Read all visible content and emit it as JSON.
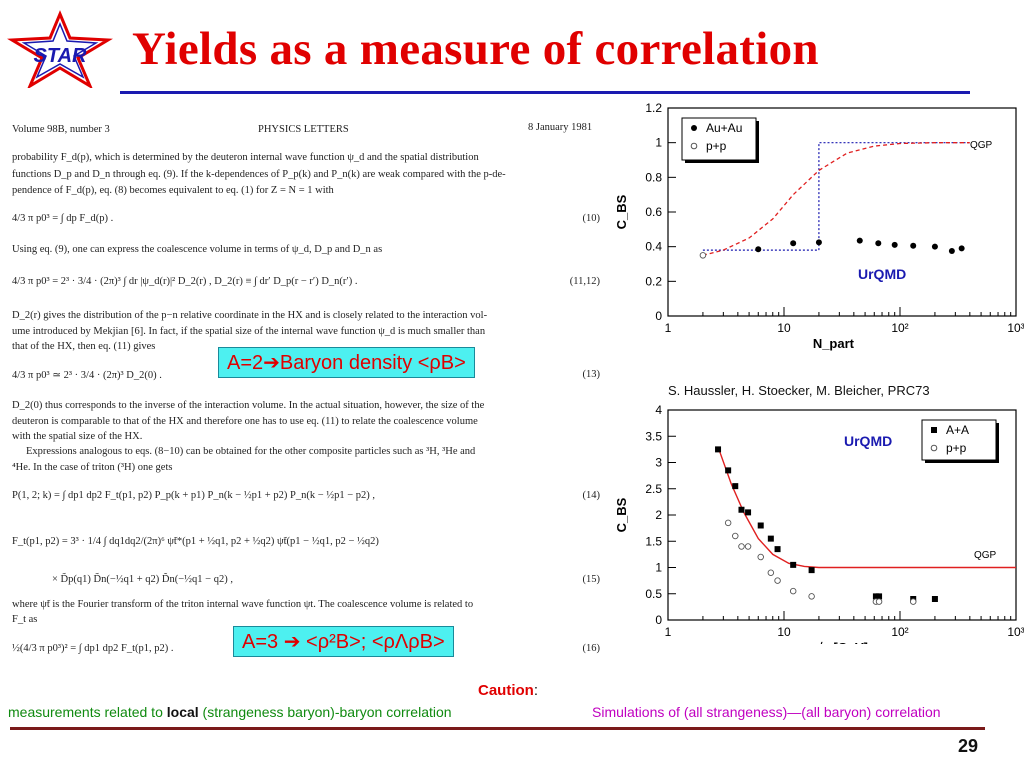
{
  "slide": {
    "title": "Yields as a measure of correlation",
    "logo_text": "STAR",
    "page_number": "29",
    "colors": {
      "title": "#e00000",
      "rule": "#1a1ab0",
      "callout_bg": "#4df0f0",
      "caution_red": "#e00000",
      "green": "#108a10",
      "magenta": "#c000c0"
    }
  },
  "paper": {
    "header_left": "Volume 98B, number 3",
    "header_center": "PHYSICS LETTERS",
    "header_right": "8 January 1981",
    "lines": [
      "probability F_d(p), which is determined by the deuteron internal wave function ψ_d and the spatial distribution",
      "functions D_p and D_n through eq. (9). If the k-dependences of P_p(k) and P_n(k) are weak compared with the p-de-",
      "pendence of F_d(p), eq. (8) becomes equivalent to eq. (1) for Z = N = 1 with",
      "4/3 π p0³ = ∫ dp F_d(p) .",
      "Using eq. (9), one can express the coalescence volume in terms of ψ_d, D_p and D_n as",
      "4/3 π p0³ = 2³ · 3/4 · (2π)³ ∫ dr |ψ_d(r)|² D_2(r) ,    D_2(r) ≡ ∫ dr′ D_p(r − r′) D_n(r′) .",
      "D_2(r) gives the distribution of the p−n relative coordinate in the HX and is closely related to the interaction vol-",
      "ume introduced by Mekjian [6]. In fact, if the spatial size of the internal wave function ψ_d is much smaller than",
      "that of the HX, then eq. (11) gives",
      "4/3 π p0³ ≃ 2³ · 3/4 · (2π)³ D_2(0) .",
      "D_2(0) thus corresponds to the inverse of the interaction volume. In the actual situation, however, the size of the",
      "deuteron is comparable to that of the HX and therefore one has to use eq. (11) to relate the coalescence volume",
      "with the spatial size of the HX.",
      "Expressions analogous to eqs. (8−10) can be obtained for the other composite particles such as ³H, ³He and",
      "⁴He. In the case of triton (³H) one gets",
      "P(1, 2; k) = ∫ dp1 dp2 F_t(p1, p2) P_p(k + p1) P_n(k − ½p1 + p2) P_n(k − ½p1 − p2) ,",
      "F_t(p1, p2) = 3³ · 1/4 ∫ dq1dq2/(2π)⁶ ψ̃t*(p1 + ½q1, p2 + ½q2) ψ̃t(p1 − ½q1, p2 − ½q2)",
      "× D̃p(q1) D̃n(−½q1 + q2) D̃n(−½q1 − q2) ,",
      "where ψ̃t is the Fourier transform of the triton internal wave function ψt. The coalescence volume is related to",
      "F_t as",
      "½(4/3 π p0³)² = ∫ dp1 dp2 F_t(p1, p2) ."
    ],
    "eq_numbers": [
      "(10)",
      "(11,12)",
      "(13)",
      "(14)",
      "(15)",
      "(16)"
    ]
  },
  "callouts": {
    "a2": "A=2➔Baryon density <ρB>",
    "a3": "A=3 ➔ <ρ²B>; <ρΛρB>"
  },
  "captions": {
    "reference": "S. Haussler, H. Stoecker, M. Bleicher, PRC73",
    "caution_label": "Caution",
    "caution_colon": ":",
    "left_pre": "measurements related to ",
    "left_bold": "local",
    "left_post": " (strangeness baryon)-baryon correlation",
    "right": "Simulations of (all strangeness)—(all baryon) correlation"
  },
  "chart_data": [
    {
      "type": "scatter",
      "xlabel": "N_part",
      "ylabel": "C_BS",
      "xscale": "log",
      "xlim": [
        1,
        1000
      ],
      "ylim": [
        0,
        1.2
      ],
      "xticks": [
        "1",
        "10",
        "10²",
        "10³"
      ],
      "yticks": [
        "0",
        "0.2",
        "0.4",
        "0.6",
        "0.8",
        "1",
        "1.2"
      ],
      "annotations": [
        "QGP",
        "UrQMD"
      ],
      "legend": {
        "placement": "top-left",
        "entries": [
          "Au+Au",
          "p+p"
        ]
      },
      "series": [
        {
          "name": "Au+Au",
          "marker": "filled-circle",
          "x": [
            6,
            12,
            20,
            45,
            65,
            90,
            130,
            200,
            280,
            340
          ],
          "y": [
            0.385,
            0.42,
            0.425,
            0.435,
            0.42,
            0.41,
            0.405,
            0.4,
            0.375,
            0.39
          ]
        },
        {
          "name": "p+p",
          "marker": "open-circle",
          "x": [
            2
          ],
          "y": [
            0.35
          ]
        }
      ],
      "lines": [
        {
          "style": "blue-dotted-step",
          "x": [
            2,
            20,
            20,
            400
          ],
          "y": [
            0.38,
            0.38,
            1.0,
            1.0
          ]
        },
        {
          "style": "red-dashed-sigmoid",
          "x": [
            2,
            3,
            5,
            8,
            12,
            20,
            35,
            60,
            100,
            200,
            400
          ],
          "y": [
            0.35,
            0.38,
            0.45,
            0.56,
            0.7,
            0.84,
            0.94,
            0.98,
            0.995,
            1.0,
            1.0
          ]
        }
      ]
    },
    {
      "type": "scatter",
      "xlabel": "√s [GeV]",
      "ylabel": "C_BS",
      "xscale": "log",
      "xlim": [
        1,
        1000
      ],
      "ylim": [
        0,
        4
      ],
      "xticks": [
        "1",
        "10",
        "10²",
        "10³"
      ],
      "yticks": [
        "0",
        "0.5",
        "1",
        "1.5",
        "2",
        "2.5",
        "3",
        "3.5",
        "4"
      ],
      "annotations": [
        "UrQMD",
        "QGP"
      ],
      "legend": {
        "placement": "top-right",
        "entries": [
          "A+A",
          "p+p"
        ]
      },
      "series": [
        {
          "name": "A+A",
          "marker": "filled-square",
          "x": [
            2.7,
            3.3,
            3.8,
            4.3,
            4.9,
            6.3,
            7.7,
            8.8,
            12,
            17.3,
            62,
            66,
            130,
            200
          ],
          "y": [
            3.25,
            2.85,
            2.55,
            2.1,
            2.05,
            1.8,
            1.55,
            1.35,
            1.05,
            0.95,
            0.45,
            0.45,
            0.4,
            0.4
          ]
        },
        {
          "name": "p+p",
          "marker": "open-circle",
          "x": [
            3.3,
            3.8,
            4.3,
            4.9,
            6.3,
            7.7,
            8.8,
            12,
            17.3,
            62,
            66,
            130
          ],
          "y": [
            1.85,
            1.6,
            1.4,
            1.4,
            1.2,
            0.9,
            0.75,
            0.55,
            0.45,
            0.35,
            0.35,
            0.35
          ]
        }
      ],
      "lines": [
        {
          "style": "red-solid-fit",
          "x": [
            2.7,
            3.5,
            4.5,
            6,
            8,
            11,
            15,
            20,
            30,
            60,
            100,
            200,
            400,
            1000
          ],
          "y": [
            3.3,
            2.6,
            2.05,
            1.55,
            1.25,
            1.08,
            1.02,
            1.0,
            1.0,
            1.0,
            1.0,
            1.0,
            1.0,
            1.0
          ]
        }
      ]
    }
  ]
}
